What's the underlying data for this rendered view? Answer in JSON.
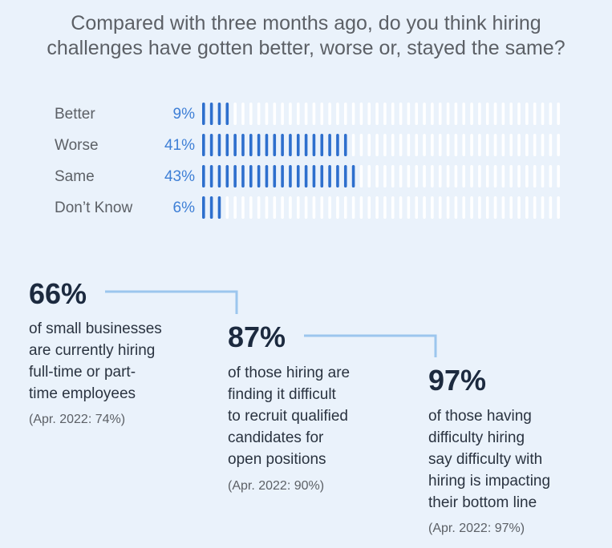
{
  "title": {
    "line1": "Compared with three months ago, do you think hiring",
    "line2": "challenges have gotten better, worse or, stayed the same?"
  },
  "chart_data": {
    "type": "bar",
    "categories": [
      "Better",
      "Worse",
      "Same",
      "Don’t Know"
    ],
    "values": [
      9,
      41,
      43,
      6
    ],
    "value_labels": [
      "9%",
      "41%",
      "43%",
      "6%"
    ],
    "ylim": [
      0,
      100
    ],
    "colors": {
      "filled": "#2e6fcd",
      "empty": "#ffffff"
    }
  },
  "stats": [
    {
      "value": "66%",
      "lines": [
        "of small businesses",
        "are currently hiring",
        "full-time or part-",
        "time employees"
      ],
      "note": "(Apr. 2022: 74%)"
    },
    {
      "value": "87%",
      "lines": [
        "of those hiring are",
        "finding it difficult",
        "to recruit qualified",
        "candidates for",
        "open positions"
      ],
      "note": "(Apr. 2022: 90%)"
    },
    {
      "value": "97%",
      "lines": [
        "of those having",
        "difficulty hiring",
        "say difficulty with",
        "hiring is impacting",
        "their bottom line"
      ],
      "note": "(Apr. 2022: 97%)"
    }
  ],
  "colors": {
    "connector": "#9cc6ee",
    "accent": "#3e7fd6"
  }
}
